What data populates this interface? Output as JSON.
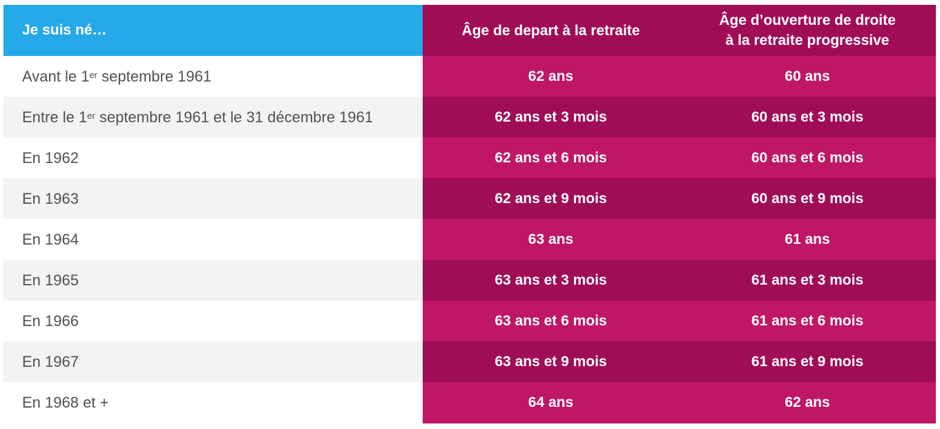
{
  "header": {
    "col1": "Je suis né…",
    "col2": "Âge de depart à la retraite",
    "col3_line1": "Âge d’ouverture de droite",
    "col3_line2": "à la retraite progressive"
  },
  "rows": [
    {
      "pre": "Avant le 1",
      "sup": "er",
      "post": " septembre 1961",
      "age_depart": "62 ans",
      "age_progressive": "60 ans"
    },
    {
      "pre": "Entre le 1",
      "sup": "er",
      "post": " septembre 1961 et le 31 décembre 1961",
      "age_depart": "62 ans et 3 mois",
      "age_progressive": "60 ans et 3 mois"
    },
    {
      "pre": "En 1962",
      "sup": "",
      "post": "",
      "age_depart": "62 ans et 6 mois",
      "age_progressive": "60 ans et 6 mois"
    },
    {
      "pre": "En 1963",
      "sup": "",
      "post": "",
      "age_depart": "62 ans et 9 mois",
      "age_progressive": "60 ans et 9 mois"
    },
    {
      "pre": "En 1964",
      "sup": "",
      "post": "",
      "age_depart": "63 ans",
      "age_progressive": "61 ans"
    },
    {
      "pre": "En 1965",
      "sup": "",
      "post": "",
      "age_depart": "63 ans et 3 mois",
      "age_progressive": "61 ans et 3 mois"
    },
    {
      "pre": "En 1966",
      "sup": "",
      "post": "",
      "age_depart": "63 ans et 6 mois",
      "age_progressive": "61 ans et 6 mois"
    },
    {
      "pre": "En 1967",
      "sup": "",
      "post": "",
      "age_depart": "63 ans et 9 mois",
      "age_progressive": "61 ans et 9 mois"
    },
    {
      "pre": "En 1968 et +",
      "sup": "",
      "post": "",
      "age_depart": "64 ans",
      "age_progressive": "62 ans"
    }
  ],
  "colors": {
    "header_blue": "#25a9e8",
    "magenta_dark": "#a00d57",
    "magenta_light": "#bf1765",
    "row_stripe": "#f3f3f3",
    "label_text": "#505050"
  }
}
